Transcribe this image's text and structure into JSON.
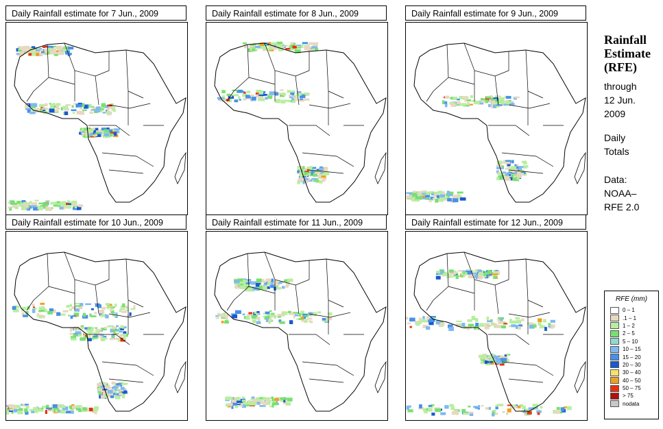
{
  "panels": [
    {
      "title": "Daily Rainfall estimate for  7 Jun., 2009"
    },
    {
      "title": "Daily Rainfall estimate for  8 Jun., 2009"
    },
    {
      "title": "Daily Rainfall estimate for  9 Jun., 2009"
    },
    {
      "title": "Daily Rainfall estimate for  10 Jun., 2009"
    },
    {
      "title": "Daily Rainfall estimate for  11 Jun., 2009"
    },
    {
      "title": "Daily Rainfall estimate for  12 Jun., 2009"
    }
  ],
  "side": {
    "title_line1": "Rainfall",
    "title_line2": "Estimate",
    "title_line3": "(RFE)",
    "through_line1": "through",
    "through_line2": "12 Jun.",
    "through_line3": "2009",
    "totals_line1": "Daily",
    "totals_line2": "Totals",
    "data_line1": "Data:",
    "data_line2": "NOAA–",
    "data_line3": "RFE 2.0"
  },
  "legend": {
    "title": "RFE (mm)",
    "items": [
      {
        "label": "0 – 1",
        "color": "#ffffff"
      },
      {
        "label": ".1 – 1",
        "color": "#e8d8c0"
      },
      {
        "label": "1 – 2",
        "color": "#b8eea0"
      },
      {
        "label": "2 – 5",
        "color": "#78e070"
      },
      {
        "label": "5 – 10",
        "color": "#90d8d0"
      },
      {
        "label": "10 – 15",
        "color": "#80b8f0"
      },
      {
        "label": "15 – 20",
        "color": "#4890e8"
      },
      {
        "label": "20 – 30",
        "color": "#1858d0"
      },
      {
        "label": "30 – 40",
        "color": "#f8e070"
      },
      {
        "label": "40 – 50",
        "color": "#f0a020"
      },
      {
        "label": "50 – 75",
        "color": "#e83010"
      },
      {
        "label": "> 75",
        "color": "#b01010"
      },
      {
        "label": "nodata",
        "color": "#c8c8c8"
      }
    ]
  }
}
